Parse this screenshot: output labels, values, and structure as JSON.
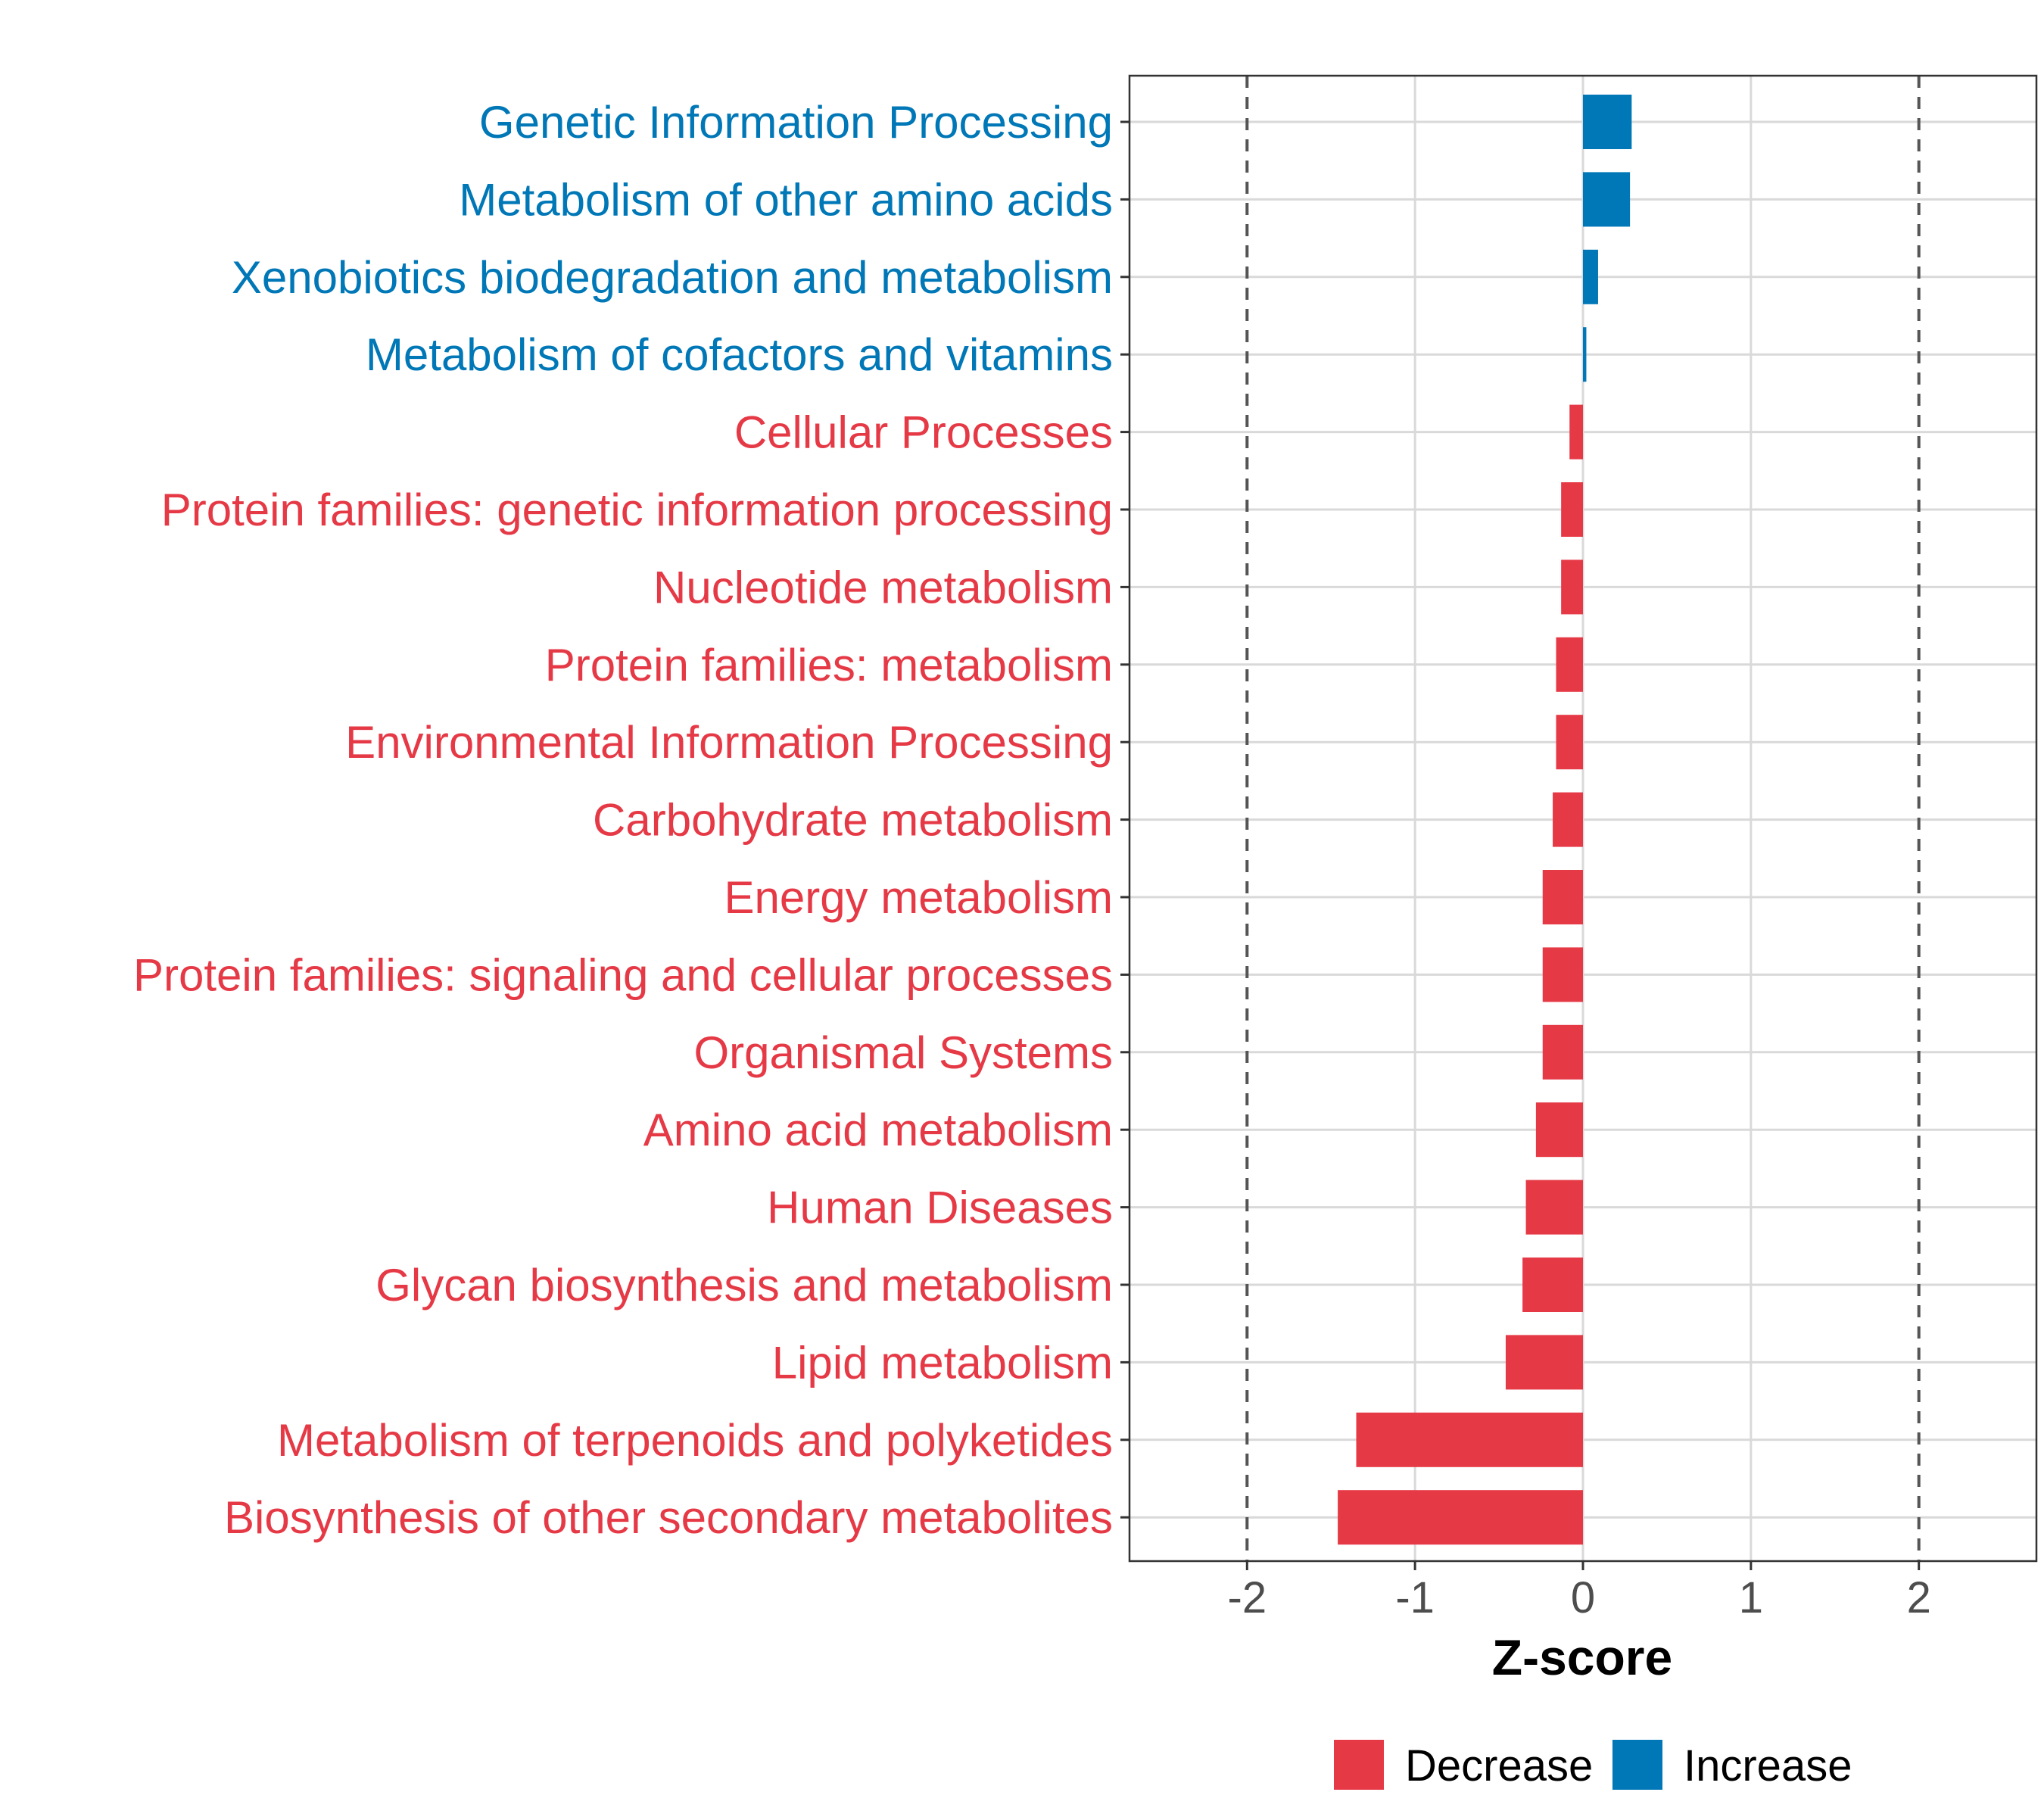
{
  "colors": {
    "decrease": "#E63946",
    "increase": "#0077B6",
    "grid": "#D9D9D9",
    "axis_text": "#4D4D4D",
    "reference_line": "#555555"
  },
  "chart_data": {
    "type": "bar",
    "orientation": "horizontal",
    "title": "",
    "xlabel": "Z-score",
    "ylabel": "",
    "xlim": [
      -2.7,
      2.7
    ],
    "xticks": [
      -2,
      -1,
      0,
      1,
      2
    ],
    "xtick_labels": [
      "-2",
      "-1",
      "0",
      "1",
      "2"
    ],
    "reference_lines": [
      -2,
      2
    ],
    "grid": true,
    "legend": {
      "position": "bottom",
      "entries": [
        {
          "label": "Decrease",
          "color_key": "decrease"
        },
        {
          "label": "Increase",
          "color_key": "increase"
        }
      ]
    },
    "categories": [
      "Genetic Information Processing",
      "Metabolism of other amino acids",
      "Xenobiotics biodegradation and metabolism",
      "Metabolism of cofactors and vitamins",
      "Cellular Processes",
      "Protein families: genetic information processing",
      "Nucleotide metabolism",
      "Protein families: metabolism",
      "Environmental Information Processing",
      "Carbohydrate metabolism",
      "Energy metabolism",
      "Protein families: signaling and cellular processes",
      "Organismal Systems",
      "Amino acid metabolism",
      "Human Diseases",
      "Glycan biosynthesis and metabolism",
      "Lipid metabolism",
      "Metabolism of terpenoids and polyketides",
      "Biosynthesis of other secondary metabolites"
    ],
    "values": [
      0.29,
      0.28,
      0.09,
      0.02,
      -0.08,
      -0.13,
      -0.13,
      -0.16,
      -0.16,
      -0.18,
      -0.24,
      -0.24,
      -0.24,
      -0.28,
      -0.34,
      -0.36,
      -0.46,
      -1.35,
      -1.46
    ],
    "direction": [
      "Increase",
      "Increase",
      "Increase",
      "Increase",
      "Decrease",
      "Decrease",
      "Decrease",
      "Decrease",
      "Decrease",
      "Decrease",
      "Decrease",
      "Decrease",
      "Decrease",
      "Decrease",
      "Decrease",
      "Decrease",
      "Decrease",
      "Decrease",
      "Decrease"
    ]
  }
}
